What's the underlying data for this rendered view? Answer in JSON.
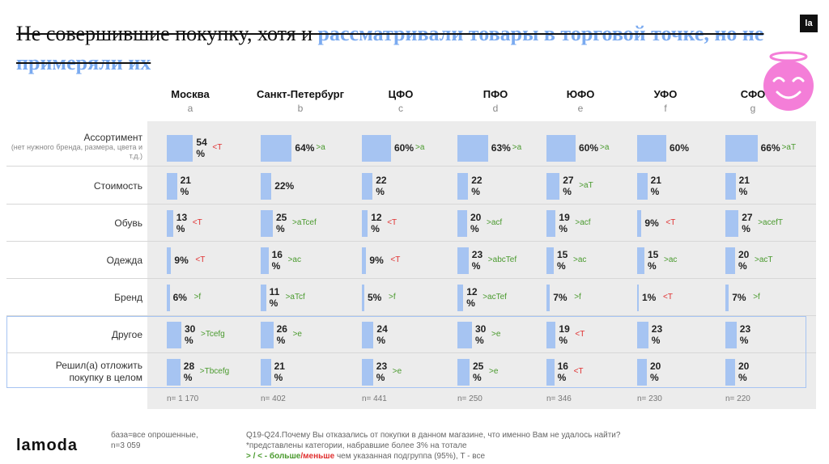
{
  "title": {
    "part1": "Не совершившие покупку, хотя и ",
    "part2": "рассматривали товары в торговой точке, но не примеряли их"
  },
  "logo_small": "la",
  "logo": "lamoda",
  "columns": [
    {
      "name": "Москва",
      "letter": "a",
      "n": "n= 1 170"
    },
    {
      "name": "Санкт-Петербург",
      "letter": "b",
      "n": "n= 402"
    },
    {
      "name": "ЦФО",
      "letter": "c",
      "n": "n= 441"
    },
    {
      "name": "ПФО",
      "letter": "d",
      "n": "n= 250"
    },
    {
      "name": "ЮФО",
      "letter": "e",
      "n": "n= 346"
    },
    {
      "name": "УФО",
      "letter": "f",
      "n": "n= 230"
    },
    {
      "name": "СФО",
      "letter": "g",
      "n": "n= 220"
    }
  ],
  "rows": [
    {
      "label": "Ассортимент",
      "sub": "(нет нужного бренда, размера, цвета и т.д.)",
      "cells": [
        {
          "value": 54,
          "text": "54 %",
          "sig": "<T",
          "dir": "neg"
        },
        {
          "value": 64,
          "text": "64%",
          "sig": ">a",
          "dir": "pos"
        },
        {
          "value": 60,
          "text": "60%",
          "sig": ">a",
          "dir": "pos"
        },
        {
          "value": 63,
          "text": "63%",
          "sig": ">a",
          "dir": "pos"
        },
        {
          "value": 60,
          "text": "60%",
          "sig": ">a",
          "dir": "pos"
        },
        {
          "value": 60,
          "text": "60%",
          "sig": "",
          "dir": ""
        },
        {
          "value": 66,
          "text": "66%",
          "sig": ">aT",
          "dir": "pos"
        }
      ]
    },
    {
      "label": "Стоимость",
      "sub": "",
      "cells": [
        {
          "value": 21,
          "text": "21 %",
          "sig": "",
          "dir": ""
        },
        {
          "value": 22,
          "text": "22%",
          "sig": "",
          "dir": ""
        },
        {
          "value": 22,
          "text": "22 %",
          "sig": "",
          "dir": ""
        },
        {
          "value": 22,
          "text": "22 %",
          "sig": "",
          "dir": ""
        },
        {
          "value": 27,
          "text": "27 %",
          "sig": ">aT",
          "dir": "pos"
        },
        {
          "value": 21,
          "text": "21 %",
          "sig": "",
          "dir": ""
        },
        {
          "value": 21,
          "text": "21 %",
          "sig": "",
          "dir": ""
        }
      ]
    },
    {
      "label": "Обувь",
      "sub": "",
      "cells": [
        {
          "value": 13,
          "text": "13 %",
          "sig": "<T",
          "dir": "neg"
        },
        {
          "value": 25,
          "text": "25 %",
          "sig": ">aTcef",
          "dir": "pos"
        },
        {
          "value": 12,
          "text": "12 %",
          "sig": "<T",
          "dir": "neg"
        },
        {
          "value": 20,
          "text": "20 %",
          "sig": ">acf",
          "dir": "pos"
        },
        {
          "value": 19,
          "text": "19 %",
          "sig": ">acf",
          "dir": "pos"
        },
        {
          "value": 9,
          "text": "9%",
          "sig": "<T",
          "dir": "neg"
        },
        {
          "value": 27,
          "text": "27 %",
          "sig": ">acefT",
          "dir": "pos"
        }
      ]
    },
    {
      "label": "Одежда",
      "sub": "",
      "cells": [
        {
          "value": 9,
          "text": "9%",
          "sig": "<T",
          "dir": "neg"
        },
        {
          "value": 16,
          "text": "16 %",
          "sig": ">ac",
          "dir": "pos"
        },
        {
          "value": 9,
          "text": "9%",
          "sig": "<T",
          "dir": "neg"
        },
        {
          "value": 23,
          "text": "23 %",
          "sig": ">abcTef",
          "dir": "pos"
        },
        {
          "value": 15,
          "text": "15 %",
          "sig": ">ac",
          "dir": "pos"
        },
        {
          "value": 15,
          "text": "15 %",
          "sig": ">ac",
          "dir": "pos"
        },
        {
          "value": 20,
          "text": "20 %",
          "sig": ">acT",
          "dir": "pos"
        }
      ]
    },
    {
      "label": "Бренд",
      "sub": "",
      "cells": [
        {
          "value": 6,
          "text": "6%",
          "sig": ">f",
          "dir": "pos"
        },
        {
          "value": 11,
          "text": "11 %",
          "sig": ">aTcf",
          "dir": "pos"
        },
        {
          "value": 5,
          "text": "5%",
          "sig": ">f",
          "dir": "pos"
        },
        {
          "value": 12,
          "text": "12 %",
          "sig": ">acTef",
          "dir": "pos"
        },
        {
          "value": 7,
          "text": "7%",
          "sig": ">f",
          "dir": "pos"
        },
        {
          "value": 1,
          "text": "1%",
          "sig": "<T",
          "dir": "neg"
        },
        {
          "value": 7,
          "text": "7%",
          "sig": ">f",
          "dir": "pos"
        }
      ]
    },
    {
      "label": "Другое",
      "sub": "",
      "cells": [
        {
          "value": 30,
          "text": "30 %",
          "sig": ">Tcefg",
          "dir": "pos"
        },
        {
          "value": 26,
          "text": "26 %",
          "sig": ">e",
          "dir": "pos"
        },
        {
          "value": 24,
          "text": "24 %",
          "sig": "",
          "dir": ""
        },
        {
          "value": 30,
          "text": "30 %",
          "sig": ">e",
          "dir": "pos"
        },
        {
          "value": 19,
          "text": "19 %",
          "sig": "<T",
          "dir": "neg"
        },
        {
          "value": 23,
          "text": "23 %",
          "sig": "",
          "dir": ""
        },
        {
          "value": 23,
          "text": "23 %",
          "sig": "",
          "dir": ""
        }
      ]
    },
    {
      "label": "Решил(а) отложить покупку в целом",
      "sub": "",
      "cells": [
        {
          "value": 28,
          "text": "28 %",
          "sig": ">Tbcefg",
          "dir": "pos"
        },
        {
          "value": 21,
          "text": "21 %",
          "sig": "",
          "dir": ""
        },
        {
          "value": 23,
          "text": "23 %",
          "sig": ">e",
          "dir": "pos"
        },
        {
          "value": 25,
          "text": "25 %",
          "sig": ">e",
          "dir": "pos"
        },
        {
          "value": 16,
          "text": "16 %",
          "sig": "<T",
          "dir": "neg"
        },
        {
          "value": 20,
          "text": "20 %",
          "sig": "",
          "dir": ""
        },
        {
          "value": 20,
          "text": "20 %",
          "sig": "",
          "dir": ""
        }
      ]
    }
  ],
  "footer": {
    "base1": "база=все опрошенные,",
    "base2": "n=3 059",
    "q1": "Q19-Q24.Почему Вы отказались от покупки в данном магазине, что именно Вам не удалось найти?",
    "q2": "*представлены категории, набравшие более 3% на тотале",
    "legend_gt": "> / < - ",
    "legend_more": "больше",
    "legend_slash": "/",
    "legend_less": "меньше",
    "legend_rest": " чем указанная подгруппа (95%), T - все"
  },
  "colors": {
    "bar": "#a6c4f2",
    "positive": "#4a9a2e",
    "negative": "#e03030",
    "title_highlight": "#7aaaf0"
  }
}
